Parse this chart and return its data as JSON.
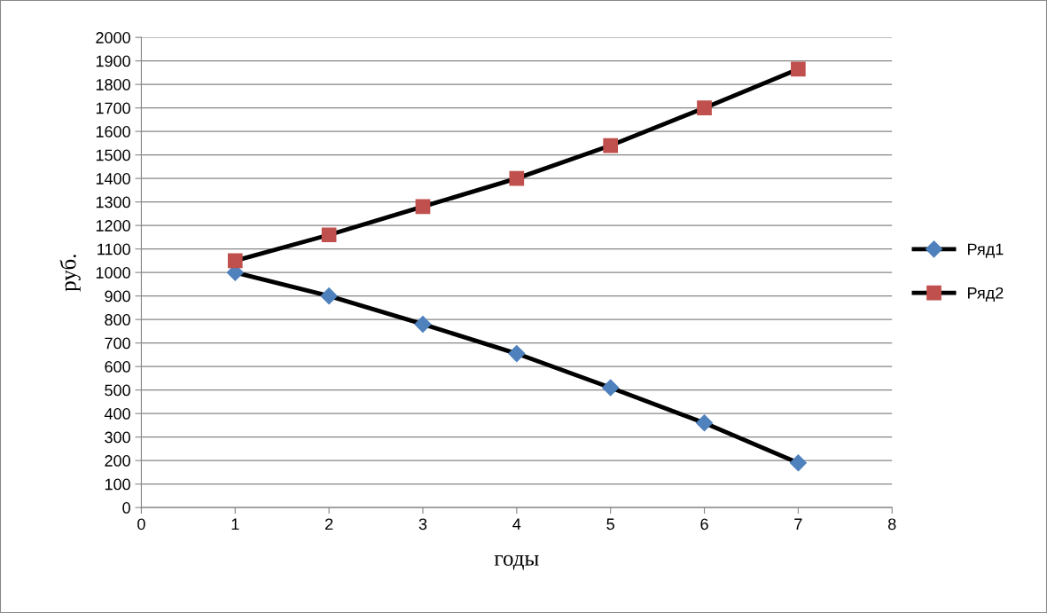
{
  "chart_data": {
    "type": "line",
    "xlabel": "годы",
    "ylabel": "руб.",
    "x": [
      1,
      2,
      3,
      4,
      5,
      6,
      7
    ],
    "series": [
      {
        "name": "Ряд1",
        "color": "#4f81bd",
        "marker": "diamond",
        "values": [
          1000,
          900,
          780,
          655,
          510,
          360,
          190
        ]
      },
      {
        "name": "Ряд2",
        "color": "#c0504d",
        "marker": "square",
        "values": [
          1050,
          1160,
          1280,
          1400,
          1540,
          1700,
          1865
        ]
      }
    ],
    "xlim": [
      0,
      8
    ],
    "xticks": [
      0,
      1,
      2,
      3,
      4,
      5,
      6,
      7,
      8
    ],
    "ylim": [
      0,
      2000
    ],
    "yticks": [
      0,
      100,
      200,
      300,
      400,
      500,
      600,
      700,
      800,
      900,
      1000,
      1100,
      1200,
      1300,
      1400,
      1500,
      1600,
      1700,
      1800,
      1900,
      2000
    ],
    "grid": "y",
    "legend": "right",
    "line_style": "solid"
  }
}
